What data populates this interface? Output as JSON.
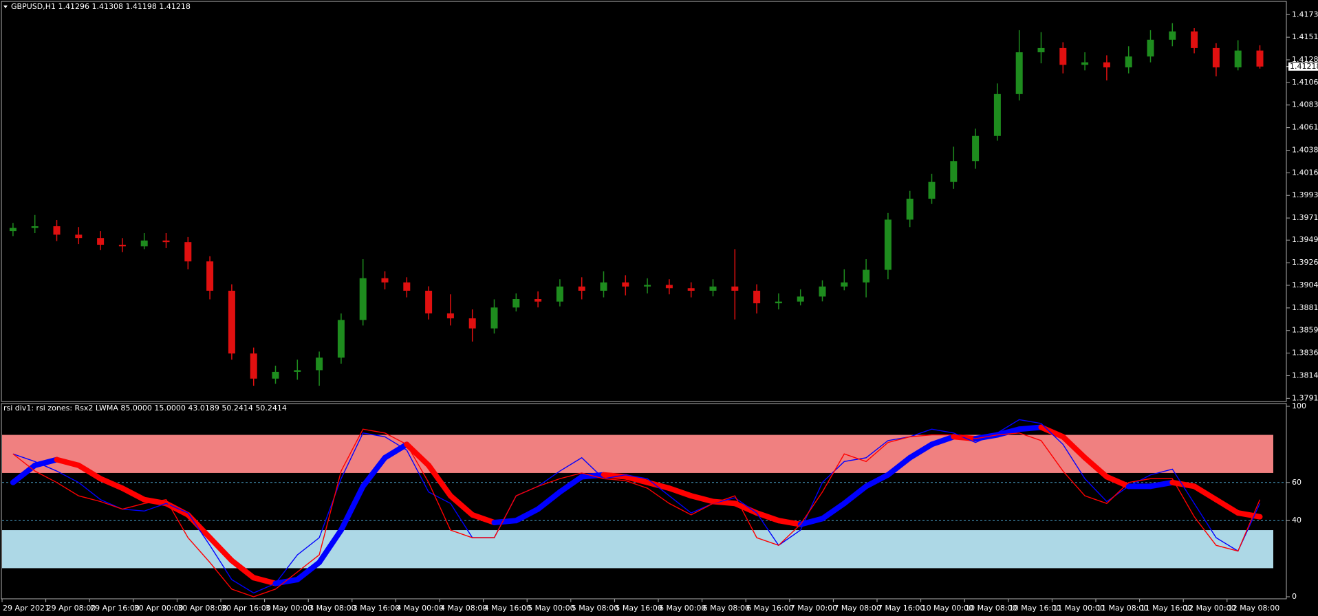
{
  "chart_data": [
    {
      "type": "candlestick",
      "title": "GBPUSD,H1  1.41296 1.41308 1.41198 1.41218",
      "categories": [
        "29 Apr 2021",
        null,
        "29 Apr 08:00",
        null,
        "29 Apr 16:00",
        null,
        "30 Apr 00:00",
        null,
        "30 Apr 08:00",
        null,
        "30 Apr 16:00",
        null,
        "3 May 00:00",
        null,
        "3 May 08:00",
        null,
        "3 May 16:00",
        null,
        "4 May 00:00",
        null,
        "4 May 08:00",
        null,
        "4 May 16:00",
        null,
        "5 May 00:00",
        null,
        "5 May 08:00",
        null,
        "5 May 16:00",
        null,
        "6 May 00:00",
        null,
        "6 May 08:00",
        null,
        "6 May 16:00",
        null,
        "7 May 00:00",
        null,
        "7 May 08:00",
        null,
        "7 May 16:00",
        null,
        "10 May 00:00",
        null,
        "10 May 08:00",
        null,
        "10 May 16:00",
        null,
        "11 May 00:00",
        null,
        "11 May 08:00",
        null,
        "11 May 16:00",
        null,
        "12 May 00:00",
        null,
        "12 May 08:00",
        null
      ],
      "open": [
        1.3958,
        1.39611,
        1.39628,
        1.39544,
        1.39511,
        1.39444,
        1.39428,
        1.39486,
        1.3947,
        1.39278,
        1.38986,
        1.38361,
        1.38111,
        1.38178,
        1.38195,
        1.3832,
        1.38695,
        1.39111,
        1.39069,
        1.38986,
        1.38761,
        1.38711,
        1.38611,
        1.38819,
        1.38903,
        1.38878,
        1.39028,
        1.38986,
        1.39069,
        1.39028,
        1.39044,
        1.39011,
        1.38986,
        1.39028,
        1.38986,
        1.38861,
        1.38878,
        1.38928,
        1.39028,
        1.39069,
        1.39194,
        1.39694,
        1.39902,
        1.40069,
        1.40277,
        1.40527,
        1.40944,
        1.4136,
        1.41402,
        1.41235,
        1.4126,
        1.4121,
        1.41318,
        1.41485,
        1.41568,
        1.41402,
        1.4121,
        1.41377
      ],
      "high": [
        1.39661,
        1.3974,
        1.3969,
        1.3962,
        1.3958,
        1.3951,
        1.3956,
        1.3956,
        1.3952,
        1.3933,
        1.3905,
        1.3842,
        1.3824,
        1.383,
        1.3838,
        1.3876,
        1.393,
        1.3918,
        1.3912,
        1.3903,
        1.3895,
        1.388,
        1.389,
        1.3896,
        1.3898,
        1.391,
        1.3912,
        1.3918,
        1.3914,
        1.3911,
        1.391,
        1.3907,
        1.391,
        1.394,
        1.3905,
        1.3896,
        1.39,
        1.3909,
        1.392,
        1.393,
        1.3976,
        1.3998,
        1.4015,
        1.4042,
        1.406,
        1.4105,
        1.4158,
        1.4156,
        1.4146,
        1.4136,
        1.4133,
        1.4142,
        1.4158,
        1.4165,
        1.416,
        1.4145,
        1.4148,
        1.4143
      ],
      "low": [
        1.3953,
        1.3956,
        1.3948,
        1.3945,
        1.3939,
        1.3937,
        1.394,
        1.3941,
        1.392,
        1.389,
        1.383,
        1.3804,
        1.3806,
        1.381,
        1.3804,
        1.3826,
        1.3864,
        1.39,
        1.3892,
        1.387,
        1.3864,
        1.3848,
        1.3856,
        1.3878,
        1.3882,
        1.3883,
        1.389,
        1.3892,
        1.3894,
        1.3896,
        1.3895,
        1.3892,
        1.3893,
        1.387,
        1.3876,
        1.388,
        1.3884,
        1.3888,
        1.3899,
        1.3892,
        1.391,
        1.3962,
        1.3985,
        1.4,
        1.402,
        1.4048,
        1.4088,
        1.4125,
        1.4115,
        1.4118,
        1.4108,
        1.4115,
        1.4126,
        1.4142,
        1.4135,
        1.4112,
        1.4118,
        1.41198
      ],
      "close": [
        1.39611,
        1.39628,
        1.39544,
        1.39511,
        1.39444,
        1.39428,
        1.39486,
        1.3947,
        1.39278,
        1.38986,
        1.38361,
        1.38111,
        1.38178,
        1.38195,
        1.3832,
        1.38695,
        1.39111,
        1.39069,
        1.38986,
        1.38761,
        1.38711,
        1.38611,
        1.38819,
        1.38903,
        1.38878,
        1.39028,
        1.38986,
        1.39069,
        1.39028,
        1.39044,
        1.39011,
        1.38986,
        1.39028,
        1.38986,
        1.38861,
        1.38878,
        1.38928,
        1.39028,
        1.39069,
        1.39194,
        1.39694,
        1.39902,
        1.40069,
        1.40277,
        1.40527,
        1.40944,
        1.4136,
        1.41402,
        1.41235,
        1.4126,
        1.4121,
        1.41318,
        1.41485,
        1.41568,
        1.41402,
        1.4121,
        1.41377,
        1.41218
      ],
      "up_color": "#1e8c1e",
      "down_color": "#e01010",
      "ylim": [
        1.3789,
        1.4186
      ],
      "yticks": [
        1.41735,
        {
          "value": 1.4151,
          "label": "1.41510"
        },
        1.41285,
        {
          "value": 1.4106,
          "label": "1.41060"
        },
        1.40835,
        {
          "value": 1.4061,
          "label": "1.40610"
        },
        1.40385,
        {
          "value": 1.4016,
          "label": "1.40160"
        },
        1.39935,
        {
          "value": 1.3971,
          "label": "1.39710"
        },
        {
          "value": 1.3949,
          "label": "1.39490"
        },
        1.39265,
        {
          "value": 1.3904,
          "label": "1.39040"
        },
        1.38815,
        {
          "value": 1.3859,
          "label": "1.38590"
        },
        1.38365,
        {
          "value": 1.3814,
          "label": "1.38140"
        },
        1.37915
      ]
    },
    {
      "type": "line",
      "title": "rsi div1: rsi zones: Rsx2 LWMA 85.0000 15.0000 43.0189 50.2414 50.2414",
      "ylim": [
        0,
        100
      ],
      "yticks": [
        100,
        60,
        40,
        0
      ],
      "zones": [
        {
          "from": 65,
          "to": 85,
          "color": "#f08080"
        },
        {
          "from": 15,
          "to": 35,
          "color": "#add8e6"
        }
      ],
      "levels": [
        60,
        40
      ],
      "series": [
        {
          "color": "#0000ff",
          "values": [
            75,
            71,
            66,
            60,
            51,
            46,
            45,
            49,
            44,
            27,
            9,
            2,
            7,
            22,
            31,
            62,
            86,
            84,
            77,
            55,
            49,
            31,
            31,
            53,
            58,
            66,
            73,
            62,
            64,
            62,
            53,
            44,
            49,
            52,
            44,
            27,
            35,
            60,
            71,
            73,
            82,
            84,
            88,
            86,
            81,
            86,
            93,
            91,
            80,
            62,
            50,
            58,
            64,
            67,
            49,
            31,
            24,
            49
          ]
        },
        {
          "color": "#ff0000",
          "values": [
            75,
            66,
            60,
            53,
            50,
            46,
            49,
            51,
            31,
            18,
            4,
            0,
            4,
            13,
            22,
            66,
            88,
            86,
            80,
            60,
            35,
            31,
            31,
            53,
            58,
            62,
            65,
            62,
            61,
            57,
            49,
            43,
            49,
            53,
            31,
            27,
            38,
            55,
            75,
            71,
            81,
            84,
            85,
            85,
            83,
            85,
            86,
            82,
            66,
            53,
            49,
            60,
            62,
            62,
            42,
            27,
            24,
            51
          ]
        },
        {
          "up_color": "#0000ff",
          "down_color": "#ff0000",
          "values": [
            60,
            69,
            72,
            69,
            62,
            57,
            51,
            49,
            43,
            31,
            19,
            10,
            7,
            9,
            18,
            35,
            58,
            73,
            80,
            69,
            53,
            43,
            39,
            40,
            46,
            55,
            63,
            64,
            63,
            60,
            57,
            53,
            50,
            49,
            44,
            40,
            38,
            41,
            49,
            58,
            64,
            73,
            80,
            84,
            83,
            85,
            88,
            89,
            84,
            73,
            63,
            58,
            58,
            60,
            58,
            51,
            44,
            42
          ]
        }
      ]
    }
  ]
}
